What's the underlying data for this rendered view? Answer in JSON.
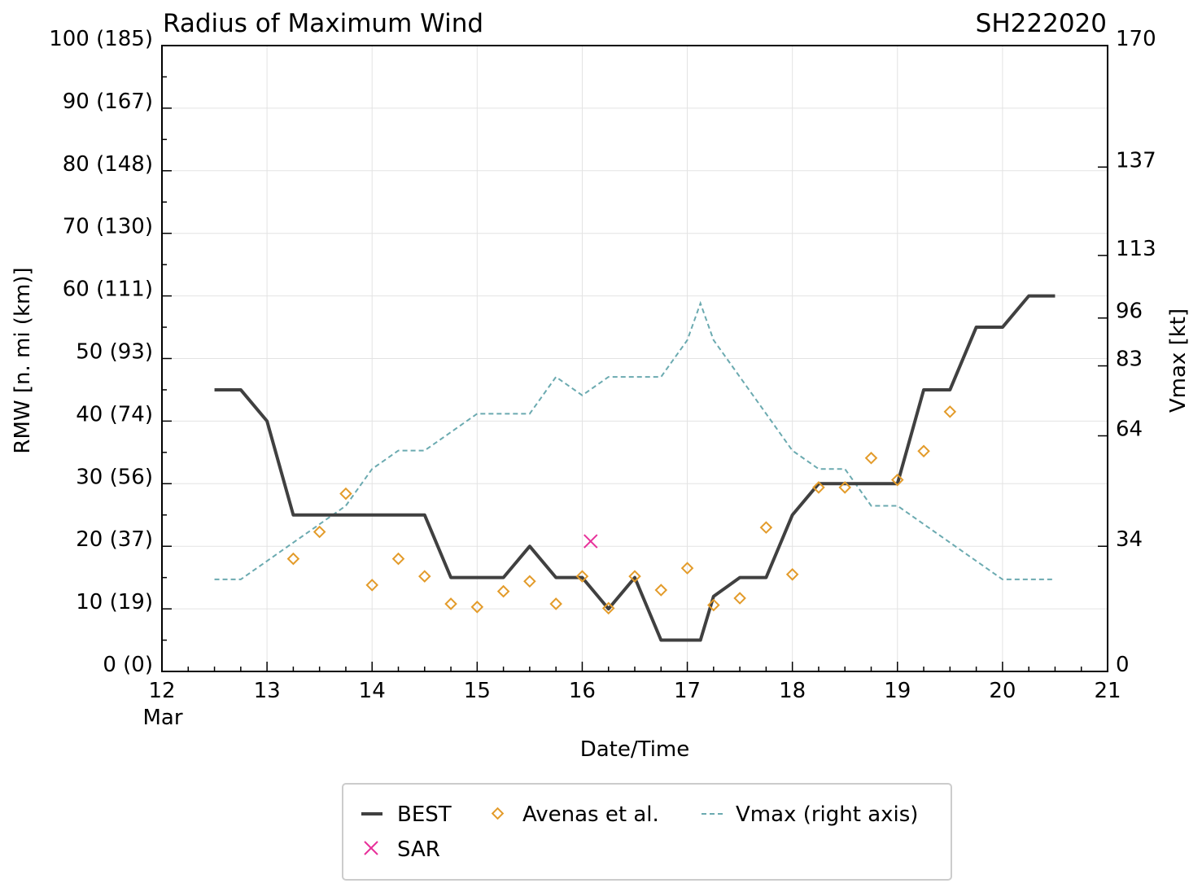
{
  "chart_data": {
    "type": "line",
    "title": "Radius of Maximum Wind",
    "storm_id": "SH222020",
    "xlabel": "Date/Time",
    "ylabel_left": "RMW [n. mi (km)]",
    "ylabel_right": "Vmax [kt]",
    "xlim": [
      12,
      21
    ],
    "ylim_left": [
      0,
      100
    ],
    "ylim_right": [
      0,
      170
    ],
    "x_ticks": [
      {
        "value": 12,
        "label": "12"
      },
      {
        "value": 13,
        "label": "13"
      },
      {
        "value": 14,
        "label": "14"
      },
      {
        "value": 15,
        "label": "15"
      },
      {
        "value": 16,
        "label": "16"
      },
      {
        "value": 17,
        "label": "17"
      },
      {
        "value": 18,
        "label": "18"
      },
      {
        "value": 19,
        "label": "19"
      },
      {
        "value": 20,
        "label": "20"
      },
      {
        "value": 21,
        "label": "21"
      }
    ],
    "x_month_label": "Mar",
    "y_left_ticks": [
      {
        "value": 0,
        "label": "0 (0)"
      },
      {
        "value": 10,
        "label": "10 (19)"
      },
      {
        "value": 20,
        "label": "20 (37)"
      },
      {
        "value": 30,
        "label": "30 (56)"
      },
      {
        "value": 40,
        "label": "40 (74)"
      },
      {
        "value": 50,
        "label": "50 (93)"
      },
      {
        "value": 60,
        "label": "60 (111)"
      },
      {
        "value": 70,
        "label": "70 (130)"
      },
      {
        "value": 80,
        "label": "80 (148)"
      },
      {
        "value": 90,
        "label": "90 (167)"
      },
      {
        "value": 100,
        "label": "100 (185)"
      }
    ],
    "y_right_ticks": [
      {
        "value": 0,
        "label": "0"
      },
      {
        "value": 34,
        "label": "34"
      },
      {
        "value": 64,
        "label": "64"
      },
      {
        "value": 83,
        "label": "83"
      },
      {
        "value": 96,
        "label": "96"
      },
      {
        "value": 113,
        "label": "113"
      },
      {
        "value": 137,
        "label": "137"
      },
      {
        "value": 170,
        "label": "170"
      }
    ],
    "series": [
      {
        "name": "BEST",
        "style": "solid",
        "color": "#404040",
        "x": [
          12.5,
          12.75,
          13.0,
          13.25,
          13.5,
          13.75,
          14.0,
          14.25,
          14.5,
          14.75,
          15.0,
          15.25,
          15.5,
          15.75,
          16.0,
          16.25,
          16.5,
          16.75,
          17.0,
          17.125,
          17.25,
          17.5,
          17.75,
          18.0,
          18.25,
          18.5,
          18.75,
          19.0,
          19.25,
          19.5,
          19.75,
          20.0,
          20.25,
          20.5
        ],
        "y": [
          45,
          45,
          40,
          25,
          25,
          25,
          25,
          25,
          25,
          15,
          15,
          15,
          20,
          15,
          15,
          10,
          15,
          5,
          5,
          5,
          12,
          15,
          15,
          25,
          30,
          30,
          30,
          30,
          45,
          45,
          55,
          55,
          60,
          60
        ]
      },
      {
        "name": "Avenas et al.",
        "style": "markers",
        "color": "#E39B2A",
        "x": [
          13.25,
          13.5,
          13.75,
          14.0,
          14.25,
          14.5,
          14.75,
          15.0,
          15.25,
          15.5,
          15.75,
          16.0,
          16.25,
          16.5,
          16.75,
          17.0,
          17.25,
          17.5,
          17.75,
          18.0,
          18.25,
          18.5,
          18.75,
          19.0,
          19.25,
          19.5
        ],
        "y": [
          18,
          22.3,
          28.4,
          13.8,
          18,
          15.2,
          10.8,
          10.3,
          12.8,
          14.4,
          10.8,
          15.2,
          10.1,
          15.2,
          13,
          16.5,
          10.6,
          11.7,
          23,
          15.5,
          29.4,
          29.4,
          34.1,
          30.6,
          35.2,
          41.5
        ]
      },
      {
        "name": "SAR",
        "style": "marker-x",
        "color": "#E8309A",
        "x": [
          16.08
        ],
        "y": [
          20.8
        ]
      },
      {
        "name": "Vmax (right axis)",
        "style": "dashed",
        "color": "#6BAAB0",
        "axis": "right",
        "x": [
          12.5,
          12.75,
          13.0,
          13.25,
          13.5,
          13.75,
          14.0,
          14.25,
          14.5,
          14.75,
          15.0,
          15.25,
          15.5,
          15.75,
          16.0,
          16.25,
          16.5,
          16.75,
          17.0,
          17.125,
          17.25,
          17.5,
          17.75,
          18.0,
          18.25,
          18.5,
          18.75,
          19.0,
          19.25,
          19.5,
          19.75,
          20.0,
          20.25,
          20.5
        ],
        "y": [
          25,
          25,
          30,
          35,
          40,
          45,
          55,
          60,
          60,
          65,
          70,
          70,
          70,
          80,
          75,
          80,
          80,
          80,
          90,
          100,
          90,
          80,
          70,
          60,
          55,
          55,
          45,
          45,
          40,
          35,
          30,
          25,
          25,
          25
        ]
      }
    ],
    "legend": {
      "position": "bottom-center",
      "entries": [
        {
          "label": "BEST",
          "style": "solid"
        },
        {
          "label": "Avenas et al.",
          "style": "markers"
        },
        {
          "label": "Vmax (right axis)",
          "style": "dashed"
        },
        {
          "label": "SAR",
          "style": "marker-x"
        }
      ]
    },
    "grid": true
  }
}
